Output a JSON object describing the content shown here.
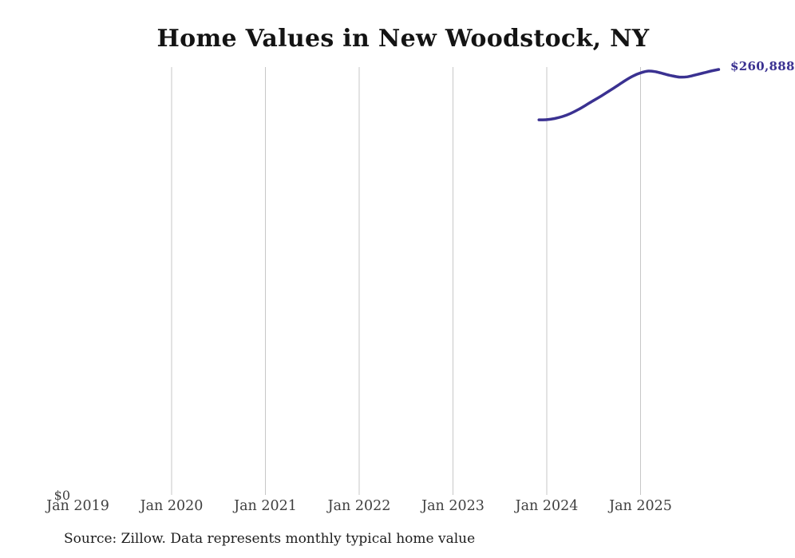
{
  "title": "Home Values in New Woodstock, NY",
  "source_note": "Source: Zillow. Data represents monthly typical home value",
  "latest_value_label": "$260,888",
  "y_axis": {
    "zero_label": "$0"
  },
  "x_axis": {
    "ticks": [
      "Jan 2019",
      "Jan 2020",
      "Jan 2021",
      "Jan 2022",
      "Jan 2023",
      "Jan 2024",
      "Jan 2025"
    ]
  },
  "colors": {
    "line": "#3a3191",
    "grid": "#c7c7c7",
    "axis_text": "#3f3f3f",
    "title_text": "#141414",
    "source_text": "#1d1d1d",
    "background": "#ffffff"
  },
  "chart_data": {
    "type": "line",
    "title": "Home Values in New Woodstock, NY",
    "xlabel": "",
    "ylabel": "",
    "ylim": [
      0,
      268000
    ],
    "x_tick_labels": [
      "Jan 2019",
      "Jan 2020",
      "Jan 2021",
      "Jan 2022",
      "Jan 2023",
      "Jan 2024",
      "Jan 2025"
    ],
    "grid": "vertical-only",
    "legend": "none",
    "end_label": "$260,888",
    "series": [
      {
        "name": "Monthly typical home value",
        "x": [
          "Dec 2023",
          "Jan 2024",
          "Feb 2024",
          "Mar 2024",
          "Apr 2024",
          "May 2024",
          "Jun 2024",
          "Jul 2024",
          "Aug 2024",
          "Sep 2024",
          "Oct 2024",
          "Nov 2024",
          "Dec 2024",
          "Jan 2025",
          "Feb 2025",
          "Mar 2025",
          "Apr 2025",
          "May 2025",
          "Jun 2025",
          "Jul 2025",
          "Aug 2025",
          "Sep 2025",
          "Oct 2025",
          "Nov 2025"
        ],
        "values": [
          230000,
          230100,
          230800,
          232000,
          233800,
          236200,
          239000,
          241900,
          244700,
          247700,
          250800,
          254000,
          256800,
          258800,
          259900,
          259400,
          258200,
          257000,
          256200,
          256400,
          257500,
          258700,
          259900,
          260888
        ]
      }
    ]
  }
}
